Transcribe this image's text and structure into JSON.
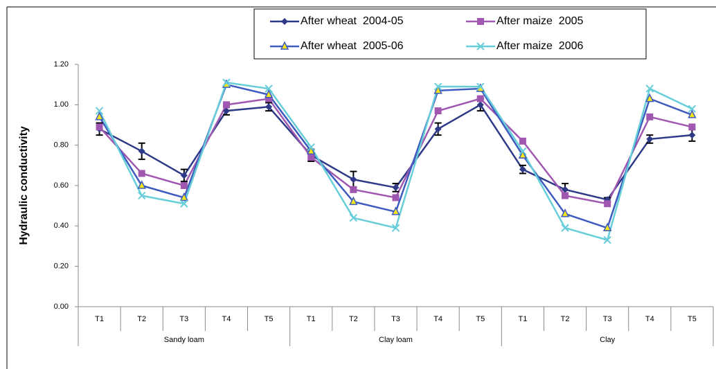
{
  "chart_data": {
    "type": "line",
    "y_label": "Hydraulic conductivity",
    "categories": [
      "T1",
      "T2",
      "T3",
      "T4",
      "T5",
      "T1",
      "T2",
      "T3",
      "T4",
      "T5",
      "T1",
      "T2",
      "T3",
      "T4",
      "T5"
    ],
    "groups": [
      "Sandy loam",
      "Clay loam",
      "Clay"
    ],
    "ylim": [
      0,
      1.2
    ],
    "yticks": [
      {
        "value": 0,
        "label": "0.00"
      },
      {
        "value": 0.2,
        "label": "0.20"
      },
      {
        "value": 0.4,
        "label": "0.40"
      },
      {
        "value": 0.6,
        "label": "0.60"
      },
      {
        "value": 0.8,
        "label": "0.80"
      },
      {
        "value": 1,
        "label": "1.00"
      },
      {
        "value": 1.2,
        "label": "1.20"
      }
    ],
    "grid": false,
    "series": [
      {
        "name": "After wheat  2004-05",
        "color": "#2e3a87",
        "marker": "diamond",
        "values": [
          0.88,
          0.77,
          0.65,
          0.97,
          0.99,
          0.75,
          0.63,
          0.59,
          0.88,
          1.0,
          0.68,
          0.58,
          0.53,
          0.83,
          0.85
        ],
        "errors": [
          0.03,
          0.04,
          0.03,
          0.02,
          0.02,
          0.03,
          0.04,
          0.02,
          0.03,
          0.03,
          0.02,
          0.03,
          0.01,
          0.02,
          0.03
        ]
      },
      {
        "name": "After maize  2005",
        "color": "#a057b0",
        "marker": "square",
        "values": [
          0.89,
          0.66,
          0.6,
          1.0,
          1.03,
          0.74,
          0.58,
          0.54,
          0.97,
          1.03,
          0.82,
          0.55,
          0.51,
          0.94,
          0.89
        ]
      },
      {
        "name": "After wheat  2005-06",
        "color": "#3d5bbf",
        "marker": "triangle",
        "values": [
          0.94,
          0.6,
          0.54,
          1.1,
          1.05,
          0.77,
          0.52,
          0.47,
          1.07,
          1.08,
          0.75,
          0.46,
          0.39,
          1.03,
          0.95
        ]
      },
      {
        "name": "After maize  2006",
        "color": "#66cdd9",
        "marker": "x",
        "values": [
          0.97,
          0.55,
          0.51,
          1.11,
          1.08,
          0.79,
          0.44,
          0.39,
          1.09,
          1.09,
          0.77,
          0.39,
          0.33,
          1.08,
          0.98
        ]
      }
    ]
  }
}
